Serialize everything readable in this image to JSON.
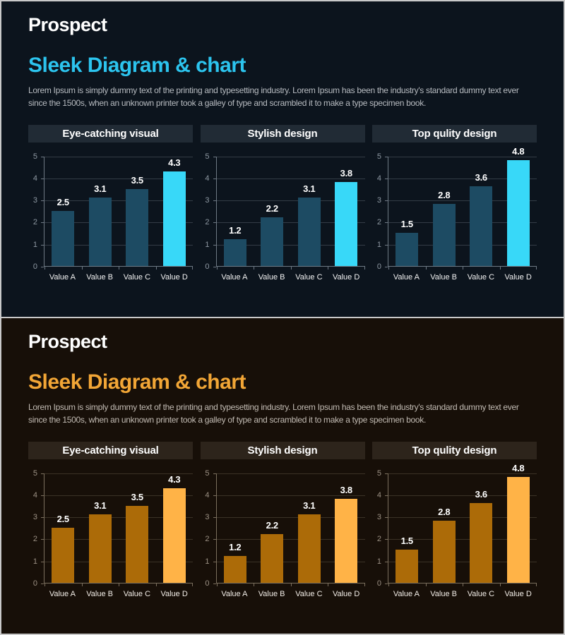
{
  "panels": [
    {
      "brand": "Prospect",
      "heading": "Sleek Diagram & chart",
      "paragraph": "Lorem Ipsum is simply dummy text of the printing and typesetting industry. Lorem Ipsum has been the industry's standard dummy text ever since the 1500s, when an unknown printer took a galley of type and scrambled it to make a type specimen book.",
      "chart_refs": [
        0,
        1,
        2
      ],
      "theme": {
        "background": "#0c141d",
        "heading_color": "#2cc4ee",
        "paragraph_color": "#b7bbc0",
        "chart_title_bg": "#212b35",
        "bar_color": "#1d4b63",
        "bar_highlight_color": "#38d8f8",
        "grid_color": "#333c46",
        "axis_color": "#6e7984",
        "axis_label_color": "#8e98a2",
        "category_label_color": "#f2f2f2"
      }
    },
    {
      "brand": "Prospect",
      "heading": "Sleek Diagram & chart",
      "paragraph": "Lorem Ipsum is simply dummy text of the printing and typesetting industry. Lorem Ipsum has been the industry's standard dummy text ever since the 1500s, when an unknown printer took a galley of type and scrambled it to make a type specimen book.",
      "chart_refs": [
        0,
        1,
        2
      ],
      "theme": {
        "background": "#170f08",
        "heading_color": "#f2a636",
        "paragraph_color": "#c2bbb3",
        "chart_title_bg": "#2d241b",
        "bar_color": "#ac6b08",
        "bar_highlight_color": "#ffb347",
        "grid_color": "#3b3226",
        "axis_color": "#7b6f5e",
        "axis_label_color": "#9c9184",
        "category_label_color": "#f2ede7"
      }
    }
  ],
  "chart_data": [
    {
      "type": "bar",
      "title": "Eye-catching visual",
      "categories": [
        "Value A",
        "Value B",
        "Value C",
        "Value D"
      ],
      "values": [
        2.5,
        3.1,
        3.5,
        4.3
      ],
      "ylim": [
        0,
        5
      ],
      "ytick_step": 1,
      "grid": true,
      "legend": "none",
      "highlight_index": 3
    },
    {
      "type": "bar",
      "title": "Stylish design",
      "categories": [
        "Value A",
        "Value B",
        "Value C",
        "Value D"
      ],
      "values": [
        1.2,
        2.2,
        3.1,
        3.8
      ],
      "ylim": [
        0,
        5
      ],
      "ytick_step": 1,
      "grid": true,
      "legend": "none",
      "highlight_index": 3
    },
    {
      "type": "bar",
      "title": "Top qulity design",
      "categories": [
        "Value A",
        "Value B",
        "Value C",
        "Value D"
      ],
      "values": [
        1.5,
        2.8,
        3.6,
        4.8
      ],
      "ylim": [
        0,
        5
      ],
      "ytick_step": 1,
      "grid": true,
      "legend": "none",
      "highlight_index": 3
    }
  ]
}
